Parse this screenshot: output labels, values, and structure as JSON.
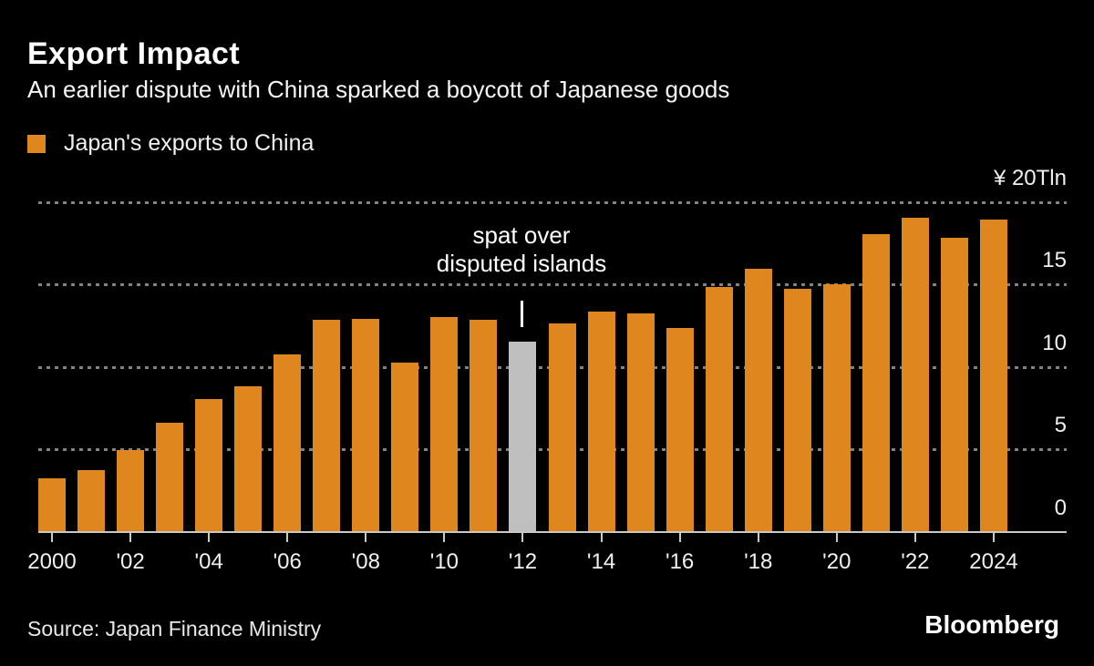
{
  "chart_data": {
    "type": "bar",
    "title": "Export Impact",
    "subtitle": "An earlier dispute with China sparked a boycott of Japanese goods",
    "series_name": "Japan's exports to China",
    "unit": "yen trillions",
    "x": [
      2000,
      2001,
      2002,
      2003,
      2004,
      2005,
      2006,
      2007,
      2008,
      2009,
      2010,
      2011,
      2012,
      2013,
      2014,
      2015,
      2016,
      2017,
      2018,
      2019,
      2020,
      2021,
      2022,
      2023,
      2024
    ],
    "values": [
      3.3,
      3.8,
      5.0,
      6.7,
      8.1,
      8.9,
      10.8,
      12.9,
      13.0,
      10.3,
      13.1,
      12.9,
      11.6,
      12.7,
      13.4,
      13.3,
      12.4,
      14.9,
      16.0,
      14.8,
      15.1,
      18.1,
      19.1,
      17.9,
      19.0
    ],
    "highlight_year": 2012,
    "annotation": {
      "lines": [
        "spat over",
        "disputed islands"
      ],
      "target_year": 2012
    },
    "ylim": [
      0,
      20
    ],
    "yticks": [
      0,
      5,
      10,
      15,
      20
    ],
    "ytick_labels": [
      "0",
      "5",
      "10",
      "15",
      "¥ 20Tln"
    ],
    "xtick_years": [
      2000,
      2002,
      2004,
      2006,
      2008,
      2010,
      2012,
      2014,
      2016,
      2018,
      2020,
      2022,
      2024
    ],
    "xtick_labels": [
      "2000",
      "'02",
      "'04",
      "'06",
      "'08",
      "'10",
      "'12",
      "'14",
      "'16",
      "'18",
      "'20",
      "'22",
      "2024"
    ],
    "grid": "horizontal-dotted",
    "legend_position": "top-left",
    "bar_color": "#DF861F",
    "highlight_bar_color": "#BFBFBF"
  },
  "footer": {
    "source": "Source: Japan Finance Ministry",
    "logo": "Bloomberg"
  },
  "colors": {
    "background": "#000000",
    "accent_orange": "#DF861F",
    "highlight_gray": "#BFBFBF",
    "gridline": "#828282",
    "axis": "#C9C9C9",
    "text": "#F2F2F2"
  }
}
